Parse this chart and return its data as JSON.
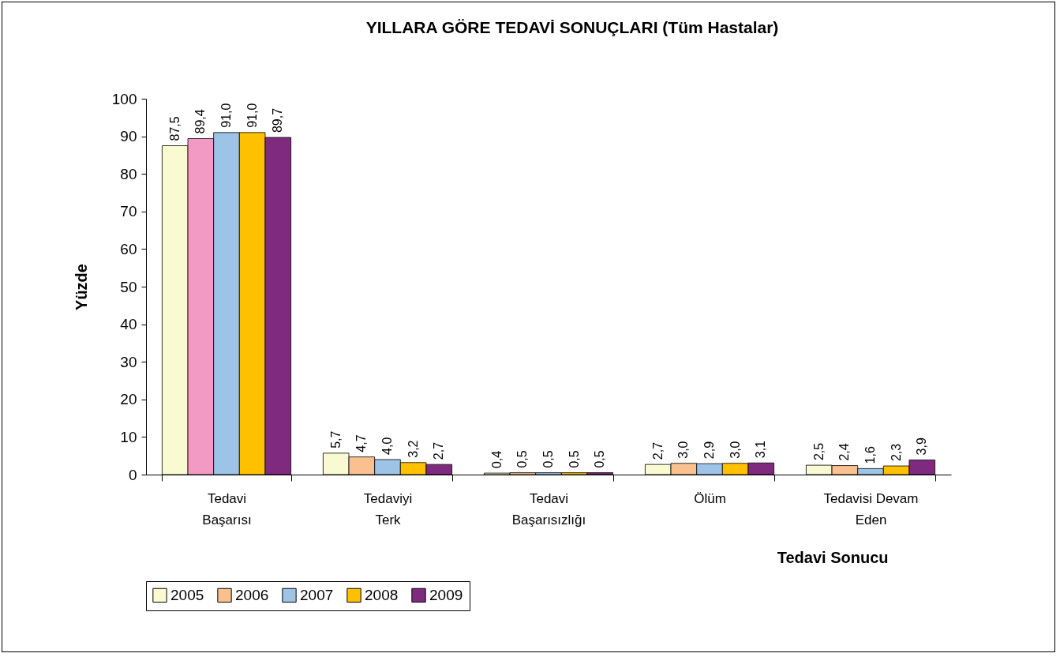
{
  "chart_data": {
    "type": "bar",
    "title": "YILLARA GÖRE TEDAVİ SONUÇLARI (Tüm Hastalar)",
    "xlabel": "Tedavi Sonucu",
    "ylabel": "Yüzde",
    "categories": [
      "Tedavi Başarısı",
      "Tedaviyi Terk",
      "Tedavi Başarısızlığı",
      "Ölüm",
      "Tedavisi Devam Eden"
    ],
    "series": [
      {
        "name": "2005",
        "color": "#fafad2",
        "values": [
          87.5,
          5.7,
          0.4,
          2.7,
          2.5
        ],
        "value_labels": [
          "87,5",
          "5,7",
          "0,4",
          "2,7",
          "2,5"
        ]
      },
      {
        "name": "2006",
        "color": "#fac090",
        "colors": [
          "#f29ac4",
          "#fac090",
          "#fac090",
          "#fac090",
          "#fac090"
        ],
        "values": [
          89.4,
          4.7,
          0.5,
          3.0,
          2.4
        ],
        "value_labels": [
          "89,4",
          "4,7",
          "0,5",
          "3,0",
          "2,4"
        ]
      },
      {
        "name": "2007",
        "color": "#9dc3e6",
        "values": [
          91.0,
          4.0,
          0.5,
          2.9,
          1.6
        ],
        "value_labels": [
          "91,0",
          "4,0",
          "0,5",
          "2,9",
          "1,6"
        ]
      },
      {
        "name": "2008",
        "color": "#ffc000",
        "values": [
          91.0,
          3.2,
          0.5,
          3.0,
          2.3
        ],
        "value_labels": [
          "91,0",
          "3,2",
          "0,5",
          "3,0",
          "2,3"
        ]
      },
      {
        "name": "2009",
        "color": "#7f2a7f",
        "values": [
          89.7,
          2.7,
          0.5,
          3.1,
          3.9
        ],
        "value_labels": [
          "89,7",
          "2,7",
          "0,5",
          "3,1",
          "3,9"
        ]
      }
    ],
    "ylim": [
      0,
      100
    ],
    "yticks": [
      0,
      10,
      20,
      30,
      40,
      50,
      60,
      70,
      80,
      90,
      100
    ],
    "grid": false,
    "legend": "bottom"
  }
}
